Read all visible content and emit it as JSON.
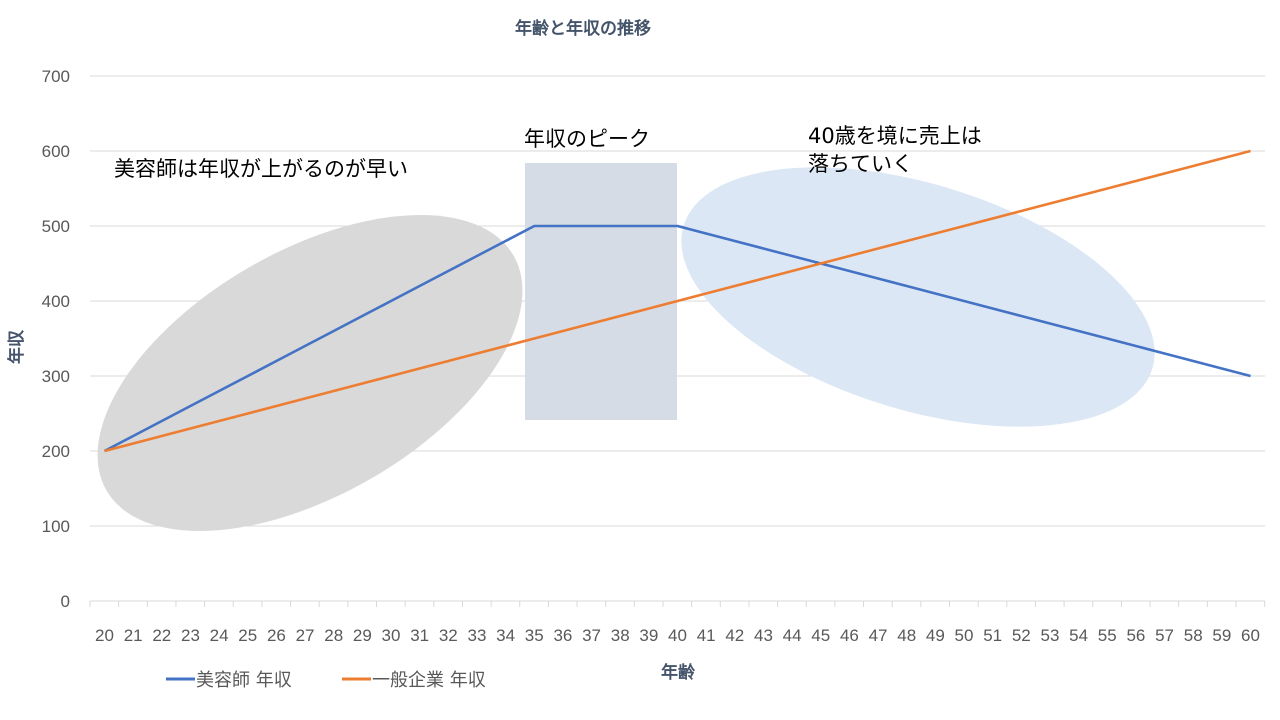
{
  "chart_data": {
    "type": "line",
    "title": "年齢と年収の推移",
    "xlabel": "年齢",
    "ylabel": "年収",
    "ylim": [
      0,
      700
    ],
    "yticks": [
      0,
      100,
      200,
      300,
      400,
      500,
      600,
      700
    ],
    "grid": true,
    "legend_position": "bottom-left",
    "x": [
      20,
      21,
      22,
      23,
      24,
      25,
      26,
      27,
      28,
      29,
      30,
      31,
      32,
      33,
      34,
      35,
      36,
      37,
      38,
      39,
      40,
      41,
      42,
      43,
      44,
      45,
      46,
      47,
      48,
      49,
      50,
      51,
      52,
      53,
      54,
      55,
      56,
      57,
      58,
      59,
      60
    ],
    "series": [
      {
        "name": "美容師 年収",
        "color": "#4472c4",
        "values": [
          200,
          220,
          240,
          260,
          280,
          300,
          320,
          340,
          360,
          380,
          400,
          420,
          440,
          460,
          480,
          500,
          500,
          500,
          500,
          500,
          500,
          490,
          480,
          470,
          460,
          450,
          440,
          430,
          420,
          410,
          400,
          390,
          380,
          370,
          360,
          350,
          340,
          330,
          320,
          310,
          300
        ]
      },
      {
        "name": "一般企業 年収",
        "color": "#ed7d31",
        "values": [
          200,
          210,
          220,
          230,
          240,
          250,
          260,
          270,
          280,
          290,
          300,
          310,
          320,
          330,
          340,
          350,
          360,
          370,
          380,
          390,
          400,
          410,
          420,
          430,
          440,
          450,
          460,
          470,
          480,
          490,
          500,
          510,
          520,
          530,
          540,
          550,
          560,
          570,
          580,
          590,
          600
        ]
      }
    ],
    "annotations": {
      "early": "美容師は年収が上がるのが早い",
      "peak": "年収のピーク",
      "decline_line1": "40歳を境に売上は",
      "decline_line2": "落ちていく"
    },
    "colors": {
      "grid": "#d9d9d9",
      "ellipse_gray": "#d9d9d9",
      "peak_box": "#d6dce5",
      "ellipse_blue": "#dce7f5"
    }
  }
}
